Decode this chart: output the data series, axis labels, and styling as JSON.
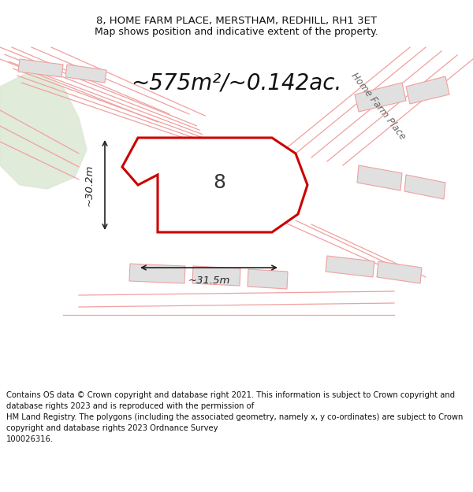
{
  "title_line1": "8, HOME FARM PLACE, MERSTHAM, REDHILL, RH1 3ET",
  "title_line2": "Map shows position and indicative extent of the property.",
  "area_text": "~575m²/~0.142ac.",
  "label_8": "8",
  "label_width": "~31.5m",
  "label_height": "~30.2m",
  "road_label": "Home Farm Place",
  "footer_text": "Contains OS data © Crown copyright and database right 2021. This information is subject to Crown copyright and database rights 2023 and is reproduced with the permission of\nHM Land Registry. The polygons (including the associated geometry, namely x, y co-ordinates) are subject to Crown copyright and database rights 2023 Ordnance Survey\n100026316.",
  "bg_color": "#ffffff",
  "plot_fill": "#ffffff",
  "plot_outline": "#cc0000",
  "road_lines_color": "#f0a0a0",
  "building_fill": "#e0e0e0",
  "building_outline": "#f0a0a0",
  "green_area_color": "#dce8d4",
  "title_fontsize": 9.5,
  "subtitle_fontsize": 9.0,
  "area_fontsize": 20,
  "label_fontsize": 18,
  "footer_fontsize": 7.2
}
